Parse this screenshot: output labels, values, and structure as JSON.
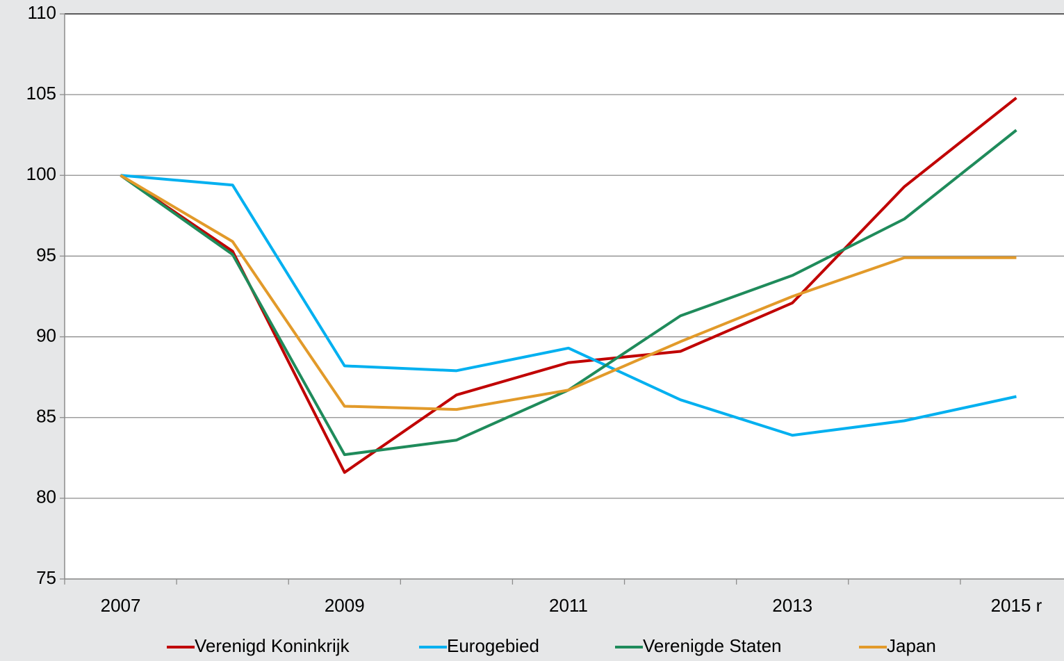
{
  "chart_data": {
    "type": "line",
    "categories": [
      "2007",
      null,
      "2009",
      null,
      "2011",
      null,
      "2013",
      null,
      "2015 r"
    ],
    "series": [
      {
        "name": "Verenigd Koninkrijk",
        "color": "#c00000",
        "values": [
          100,
          95.3,
          81.6,
          86.4,
          88.4,
          89.1,
          92.1,
          99.3,
          104.8
        ]
      },
      {
        "name": "Eurogebied",
        "color": "#00b0f0",
        "values": [
          100,
          99.4,
          88.2,
          87.9,
          89.3,
          86.1,
          83.9,
          84.8,
          86.3
        ]
      },
      {
        "name": "Verenigde Staten",
        "color": "#1f8b5b",
        "values": [
          100,
          95.1,
          82.7,
          83.6,
          86.7,
          91.3,
          93.8,
          97.3,
          102.8
        ]
      },
      {
        "name": "Japan",
        "color": "#e29a2a",
        "values": [
          100,
          95.9,
          85.7,
          85.5,
          86.7,
          89.7,
          92.5,
          94.9,
          94.9
        ]
      }
    ],
    "ylim": [
      75,
      110
    ],
    "yticks": [
      75,
      80,
      85,
      90,
      95,
      100,
      105,
      110
    ],
    "grid": true,
    "legend": "bottom"
  }
}
